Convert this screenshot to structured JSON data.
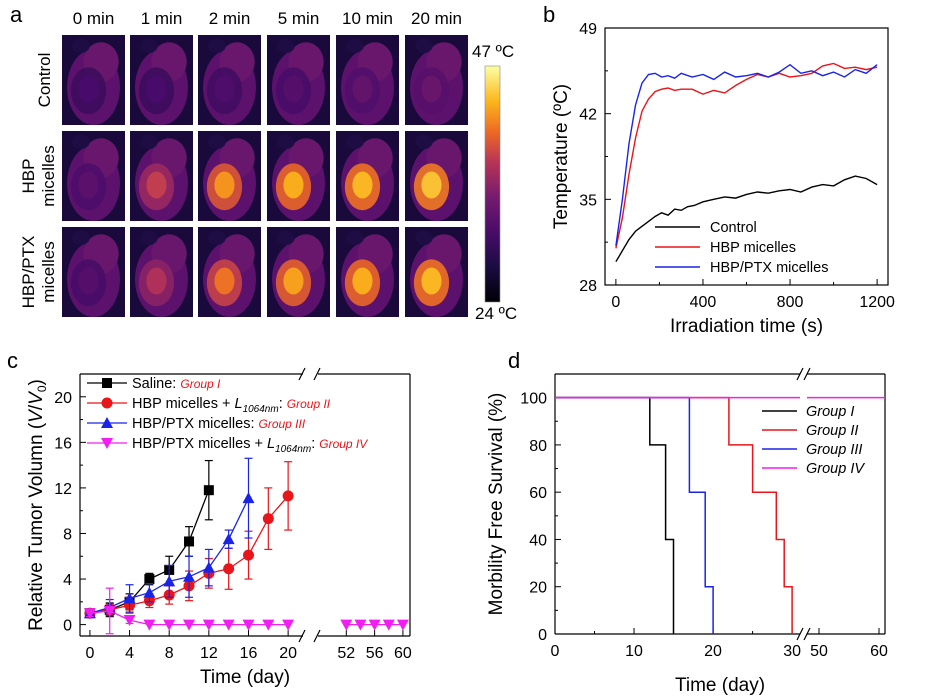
{
  "panel_a": {
    "letter": "a",
    "columns": [
      "0 min",
      "1 min",
      "2 min",
      "5 min",
      "10 min",
      "20 min"
    ],
    "rows": [
      {
        "lines": [
          "Control"
        ]
      },
      {
        "lines": [
          "HBP",
          "micelles"
        ]
      },
      {
        "lines": [
          "HBP/PTX",
          "micelles"
        ]
      }
    ],
    "colorbar": {
      "max_label": "47 ºC",
      "min_label": "24 ºC",
      "max": 47,
      "min": 24,
      "colormap": "inferno"
    },
    "heat_intensity": [
      [
        0.3,
        0.3,
        0.32,
        0.34,
        0.38,
        0.4
      ],
      [
        0.36,
        0.62,
        0.8,
        0.84,
        0.86,
        0.88
      ],
      [
        0.34,
        0.58,
        0.74,
        0.82,
        0.84,
        0.86
      ]
    ]
  },
  "chart_data": [
    {
      "panel": "b",
      "type": "line",
      "xlabel": "Irradiation time (s)",
      "ylabel": "Temperature (ºC)",
      "xlim": [
        -50,
        1250
      ],
      "ylim": [
        28,
        49
      ],
      "xticks": [
        0,
        400,
        800,
        1200
      ],
      "yticks": [
        28,
        35,
        42,
        49
      ],
      "legend_position": "bottom-center",
      "series": [
        {
          "name": "Control",
          "color": "#000000",
          "x": [
            0,
            30,
            60,
            90,
            120,
            150,
            180,
            210,
            240,
            270,
            300,
            330,
            360,
            400,
            450,
            500,
            550,
            600,
            650,
            700,
            750,
            800,
            850,
            900,
            950,
            1000,
            1050,
            1100,
            1150,
            1200
          ],
          "y": [
            29.9,
            30.8,
            31.7,
            32.4,
            32.8,
            33.2,
            33.6,
            33.9,
            33.7,
            34.2,
            34.1,
            34.4,
            34.5,
            34.8,
            35.0,
            35.2,
            35.1,
            35.4,
            35.6,
            35.5,
            35.7,
            35.8,
            35.6,
            36.0,
            36.2,
            36.1,
            36.6,
            36.9,
            36.7,
            36.2
          ]
        },
        {
          "name": "HBP micelles",
          "color": "#e8151a",
          "x": [
            0,
            30,
            60,
            90,
            120,
            150,
            180,
            210,
            240,
            270,
            300,
            350,
            400,
            450,
            500,
            550,
            600,
            650,
            700,
            750,
            800,
            850,
            900,
            950,
            1000,
            1050,
            1100,
            1150,
            1200
          ],
          "y": [
            31.0,
            33.5,
            37.0,
            40.0,
            42.2,
            43.2,
            43.8,
            44.0,
            44.1,
            43.9,
            44.0,
            44.0,
            43.6,
            43.9,
            43.7,
            44.3,
            44.8,
            45.2,
            45.0,
            45.3,
            45.0,
            45.1,
            45.3,
            45.9,
            46.1,
            45.7,
            45.8,
            45.6,
            45.8
          ]
        },
        {
          "name": "HBP/PTX micelles",
          "color": "#1a24e6",
          "x": [
            0,
            30,
            60,
            90,
            120,
            150,
            180,
            210,
            240,
            270,
            300,
            350,
            400,
            450,
            500,
            550,
            600,
            650,
            700,
            750,
            800,
            850,
            900,
            950,
            1000,
            1050,
            1100,
            1150,
            1200
          ],
          "y": [
            31.2,
            35.0,
            39.5,
            42.7,
            44.5,
            45.2,
            45.3,
            45.0,
            45.1,
            44.9,
            45.3,
            45.0,
            45.2,
            44.8,
            45.4,
            45.0,
            45.1,
            45.3,
            45.0,
            45.4,
            46.0,
            45.3,
            45.5,
            45.1,
            45.4,
            45.0,
            45.6,
            45.3,
            46.0
          ]
        }
      ]
    },
    {
      "panel": "c",
      "type": "line",
      "xlabel": "Time (day)",
      "ylabel": "Relative Tumor Volumn (V/V0)",
      "ylabel_parts": [
        "Relative Tumor Volumn (",
        "V",
        "/",
        "V",
        "0",
        ")"
      ],
      "ylim": [
        -1,
        22
      ],
      "yticks": [
        0,
        4,
        8,
        12,
        16,
        20
      ],
      "x_segments": [
        [
          -1,
          21.5
        ],
        [
          48,
          61
        ]
      ],
      "xticks": [
        0,
        4,
        8,
        12,
        16,
        20,
        52,
        56,
        60
      ],
      "legend_position": "top-left",
      "series": [
        {
          "name": "Saline",
          "group": "Group I",
          "color": "#000000",
          "marker": "square",
          "x": [
            0,
            2,
            4,
            6,
            8,
            10,
            12
          ],
          "y": [
            1.0,
            1.3,
            2.0,
            4.0,
            4.8,
            7.3,
            11.8
          ],
          "err": [
            0.3,
            0.6,
            0.7,
            0.5,
            1.2,
            1.3,
            2.6
          ]
        },
        {
          "name": "HBP micelles + L1064nm",
          "group": "Group II",
          "color": "#e8151a",
          "marker": "circle",
          "x": [
            0,
            2,
            4,
            6,
            8,
            10,
            12,
            14,
            16,
            18,
            20
          ],
          "y": [
            1.0,
            1.3,
            1.7,
            2.1,
            2.6,
            3.4,
            4.5,
            4.9,
            6.1,
            9.3,
            11.3
          ],
          "err": [
            0.3,
            0.5,
            0.7,
            0.6,
            0.8,
            1.3,
            1.3,
            1.8,
            2.1,
            2.7,
            3.0
          ]
        },
        {
          "name": "HBP/PTX micelles",
          "group": "Group III",
          "color": "#1a24e6",
          "marker": "triangle-up",
          "x": [
            0,
            2,
            4,
            6,
            8,
            10,
            12,
            14,
            16
          ],
          "y": [
            1.0,
            1.5,
            2.3,
            2.8,
            3.8,
            4.2,
            5.0,
            7.5,
            11.1
          ],
          "err": [
            0.3,
            0.7,
            1.2,
            0.8,
            1.4,
            1.8,
            1.6,
            0.8,
            3.5
          ]
        },
        {
          "name": "HBP/PTX micelles + L1064nm",
          "group": "Group IV",
          "color": "#f01ef0",
          "marker": "triangle-down",
          "x": [
            0,
            2,
            4,
            6,
            8,
            10,
            12,
            14,
            16,
            18,
            20,
            52,
            54,
            56,
            58,
            60
          ],
          "y": [
            1.0,
            1.2,
            0.4,
            0,
            0,
            0,
            0,
            0,
            0,
            0,
            0,
            0,
            0,
            0,
            0,
            0
          ],
          "err": [
            0.3,
            2.0,
            0.3,
            0,
            0,
            0,
            0,
            0,
            0,
            0,
            0,
            0,
            0,
            0,
            0,
            0
          ]
        }
      ]
    },
    {
      "panel": "d",
      "type": "line",
      "xlabel": "Time (day)",
      "ylabel": "Morbility Free Survival (%)",
      "ylim": [
        0,
        110
      ],
      "yticks": [
        0,
        20,
        40,
        60,
        80,
        100
      ],
      "x_segments": [
        [
          0,
          31
        ],
        [
          48,
          61
        ]
      ],
      "xticks": [
        0,
        10,
        20,
        30,
        50,
        60
      ],
      "legend_position": "top-right",
      "series": [
        {
          "name": "Group I",
          "color": "#000000",
          "x": [
            0,
            12,
            12,
            13,
            13,
            14,
            14,
            15,
            15
          ],
          "y": [
            100,
            100,
            80,
            80,
            80,
            80,
            40,
            40,
            0
          ]
        },
        {
          "name": "Group II",
          "color": "#e8151a",
          "x": [
            0,
            22,
            22,
            25,
            25,
            28,
            28,
            29,
            29,
            30,
            30
          ],
          "y": [
            100,
            100,
            80,
            80,
            60,
            60,
            40,
            40,
            20,
            20,
            0
          ]
        },
        {
          "name": "Group III",
          "color": "#1a24e6",
          "x": [
            0,
            17,
            17,
            19,
            19,
            20,
            20
          ],
          "y": [
            100,
            100,
            60,
            60,
            20,
            20,
            0
          ]
        },
        {
          "name": "Group IV",
          "color": "#f01ef0",
          "x": [
            0,
            60
          ],
          "y": [
            100,
            100
          ]
        }
      ]
    }
  ]
}
